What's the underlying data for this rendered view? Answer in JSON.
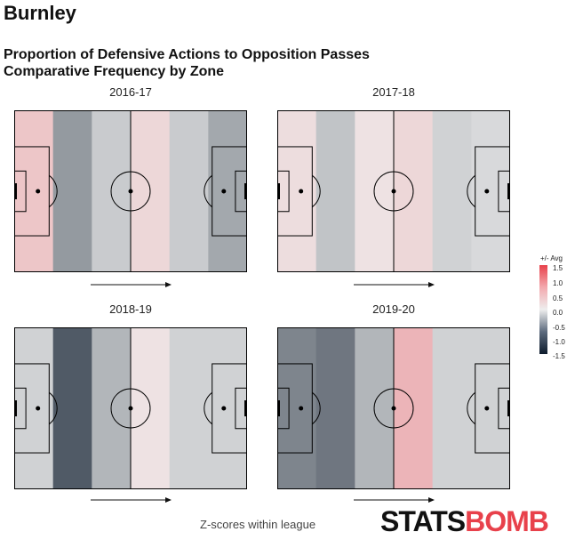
{
  "team": "Burnley",
  "title": "Proportion of Defensive Actions to Opposition Passes",
  "subtitle": "Comparative Frequency by Zone",
  "footer": "Z-scores within league",
  "logo": {
    "part1": "STATS",
    "part2": "BOMB"
  },
  "legend": {
    "title": "+/- Avg",
    "ticks": [
      "1.5",
      "1.0",
      "0.5",
      "0.0",
      "-0.5",
      "-1.0",
      "-1.5"
    ]
  },
  "chart_data": [
    {
      "type": "heatmap",
      "title": "2016-17",
      "zones": 6,
      "values": [
        0.35,
        -0.6,
        -0.25,
        0.2,
        -0.25,
        -0.5
      ]
    },
    {
      "type": "heatmap",
      "title": "2017-18",
      "zones": 6,
      "values": [
        0.15,
        -0.3,
        0.1,
        0.2,
        -0.2,
        -0.15
      ]
    },
    {
      "type": "heatmap",
      "title": "2018-19",
      "zones": 6,
      "values": [
        -0.2,
        -1.05,
        -0.4,
        0.1,
        -0.2,
        -0.2
      ]
    },
    {
      "type": "heatmap",
      "title": "2019-20",
      "zones": 6,
      "values": [
        -0.75,
        -0.85,
        -0.4,
        0.5,
        -0.2,
        -0.2
      ]
    }
  ]
}
